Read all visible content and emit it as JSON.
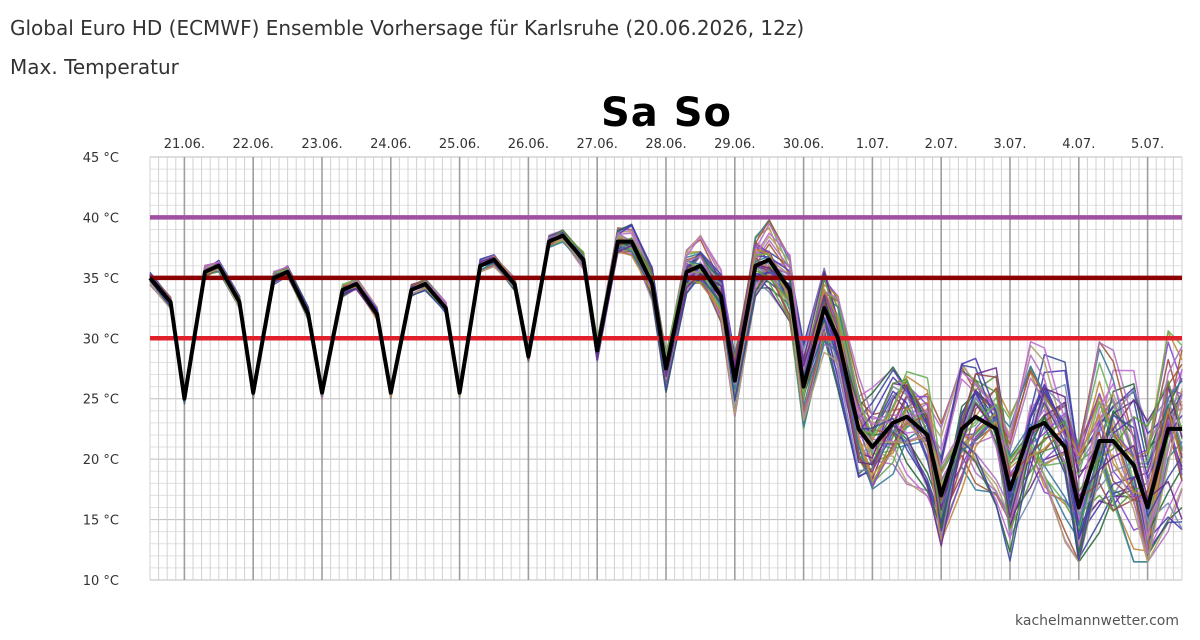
{
  "header": {
    "title": "Global Euro HD (ECMWF) Ensemble Vorhersage für Karlsruhe (20.06.2026, 12z)",
    "subtitle": "Max. Temperatur",
    "weekend_label": "Sa So",
    "credit": "kachelmannwetter.com"
  },
  "chart_data": {
    "type": "line",
    "title": "Global Euro HD (ECMWF) Ensemble Vorhersage für Karlsruhe (20.06.2026, 12z)",
    "subtitle": "Max. Temperatur",
    "ylim": [
      10,
      45
    ],
    "y_unit": "°C",
    "y_ticks": [
      "10 °C",
      "15 °C",
      "20 °C",
      "25 °C",
      "30 °C",
      "35 °C",
      "40 °C",
      "45 °C"
    ],
    "x_ticks": [
      "21.06.",
      "22.06.",
      "23.06.",
      "24.06.",
      "25.06.",
      "26.06.",
      "27.06.",
      "28.06.",
      "29.06.",
      "30.06.",
      "1.07.",
      "2.07.",
      "3.07.",
      "4.07.",
      "5.07."
    ],
    "x_range_days": [
      0.5,
      15.5
    ],
    "grid": true,
    "threshold_lines": [
      {
        "value": 40,
        "color": "#a050a0"
      },
      {
        "value": 35,
        "color": "#8b0000"
      },
      {
        "value": 30,
        "color": "#e0202a"
      }
    ],
    "mean_series": {
      "color": "#000000",
      "x": [
        0.5,
        0.8,
        1.0,
        1.3,
        1.5,
        1.8,
        2.0,
        2.3,
        2.5,
        2.8,
        3.0,
        3.3,
        3.5,
        3.8,
        4.0,
        4.3,
        4.5,
        4.8,
        5.0,
        5.3,
        5.5,
        5.8,
        6.0,
        6.3,
        6.5,
        6.8,
        7.0,
        7.3,
        7.5,
        7.8,
        8.0,
        8.3,
        8.5,
        8.8,
        9.0,
        9.3,
        9.5,
        9.8,
        10.0,
        10.3,
        10.5,
        10.8,
        11.0,
        11.3,
        11.5,
        11.8,
        12.0,
        12.3,
        12.5,
        12.8,
        13.0,
        13.3,
        13.5,
        13.8,
        14.0,
        14.3,
        14.5,
        14.8,
        15.0,
        15.3,
        15.5
      ],
      "y": [
        35.0,
        33.0,
        25.0,
        35.5,
        36.0,
        33.0,
        25.5,
        35.0,
        35.5,
        32.0,
        25.5,
        34.0,
        34.5,
        32.0,
        25.5,
        34.0,
        34.5,
        32.5,
        25.5,
        36.0,
        36.5,
        34.5,
        28.5,
        38.0,
        38.5,
        36.5,
        29.0,
        38.0,
        38.0,
        34.5,
        27.5,
        35.5,
        36.0,
        33.5,
        26.5,
        36.0,
        36.5,
        34.0,
        26.0,
        32.5,
        30.0,
        22.5,
        21.0,
        23.0,
        23.5,
        22.0,
        17.0,
        22.5,
        23.5,
        22.5,
        17.5,
        22.5,
        23.0,
        21.0,
        16.0,
        21.5,
        21.5,
        19.5,
        16.0,
        22.5,
        22.5
      ]
    },
    "ensemble": {
      "member_count": 50,
      "colors": [
        "#5a9a3a",
        "#3a4a9a",
        "#b070c0",
        "#c08a3a",
        "#6a2a8a",
        "#2a6a3a",
        "#a05a3a",
        "#8a4ad0",
        "#7a8ab0",
        "#c06ad0",
        "#3a7a9a",
        "#9a4a4a",
        "#4a3ab0",
        "#b0a070",
        "#6ab05a"
      ]
    }
  }
}
